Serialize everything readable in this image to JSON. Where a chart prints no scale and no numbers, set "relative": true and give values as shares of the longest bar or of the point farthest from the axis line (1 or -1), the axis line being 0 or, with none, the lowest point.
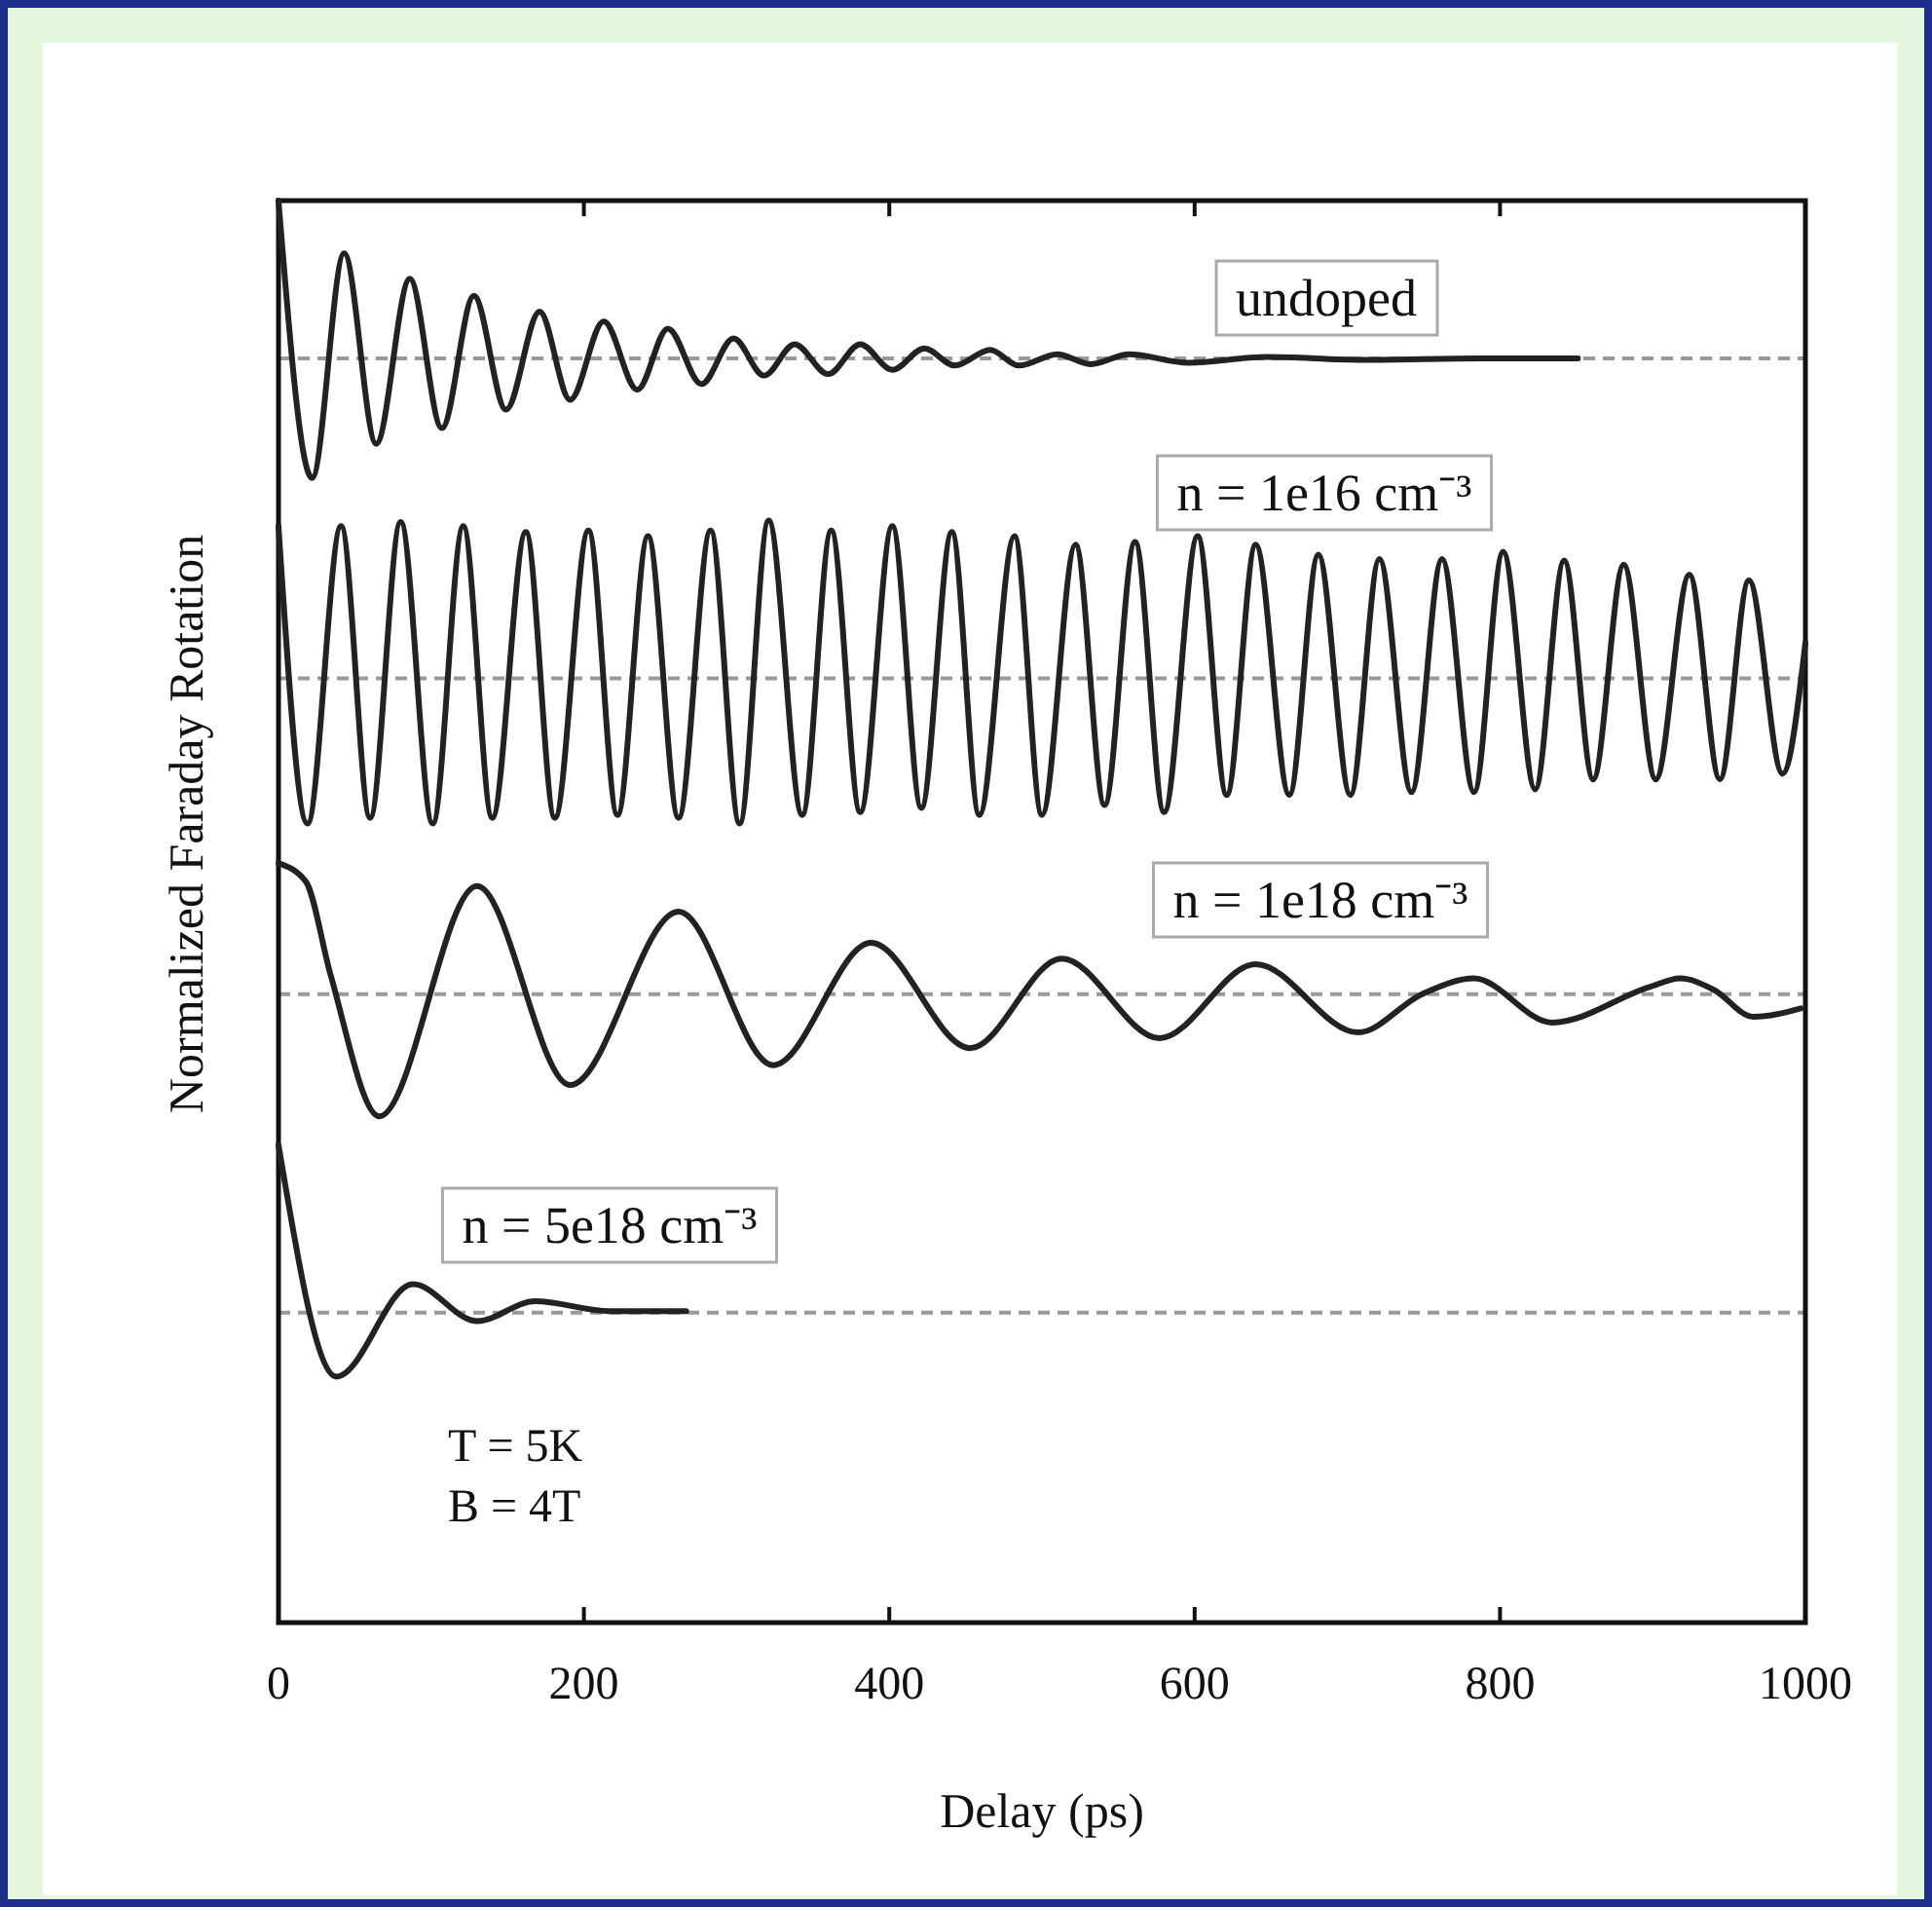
{
  "chart_data": {
    "type": "line",
    "relative": true,
    "xlabel": "Delay (ps)",
    "ylabel": "Normalized Faraday Rotation",
    "xlim": [
      0,
      1000
    ],
    "xticks": [
      0,
      200,
      400,
      600,
      800,
      1000
    ],
    "legend": false,
    "grid": false,
    "marker": "none",
    "line_style": "solid",
    "series": [
      {
        "name": "undoped",
        "color": "#222222",
        "x": [
          0,
          22,
          43,
          64,
          86,
          107,
          128,
          149,
          171,
          191,
          213,
          235,
          255,
          277,
          298,
          318,
          338,
          360,
          381,
          402,
          423,
          443,
          466,
          485,
          510,
          532,
          557,
          596,
          647,
          710,
          787,
          851
        ],
        "values": [
          1.0,
          0.805,
          0.963,
          0.829,
          0.945,
          0.84,
          0.933,
          0.853,
          0.922,
          0.86,
          0.915,
          0.867,
          0.91,
          0.871,
          0.903,
          0.877,
          0.899,
          0.878,
          0.899,
          0.881,
          0.896,
          0.884,
          0.895,
          0.884,
          0.892,
          0.885,
          0.892,
          0.886,
          0.89,
          0.888,
          0.889,
          0.889
        ]
      },
      {
        "name": "n = 1e16 cm⁻³",
        "color": "#222222",
        "x": [
          0,
          19,
          41,
          60,
          80,
          101,
          121,
          140,
          162,
          181,
          203,
          222,
          242,
          262,
          283,
          302,
          321,
          343,
          362,
          381,
          402,
          421,
          441,
          459,
          482,
          500,
          522,
          541,
          561,
          580,
          602,
          621,
          640,
          662,
          681,
          702,
          721,
          742,
          762,
          783,
          802,
          823,
          842,
          861,
          881,
          902,
          924,
          944,
          963,
          985,
          1000
        ],
        "values": [
          0.771,
          0.562,
          0.771,
          0.566,
          0.774,
          0.562,
          0.771,
          0.566,
          0.767,
          0.566,
          0.768,
          0.568,
          0.764,
          0.566,
          0.768,
          0.562,
          0.775,
          0.568,
          0.768,
          0.57,
          0.771,
          0.573,
          0.767,
          0.568,
          0.764,
          0.568,
          0.758,
          0.575,
          0.76,
          0.57,
          0.764,
          0.582,
          0.758,
          0.582,
          0.751,
          0.582,
          0.748,
          0.584,
          0.748,
          0.584,
          0.753,
          0.586,
          0.747,
          0.593,
          0.744,
          0.593,
          0.737,
          0.593,
          0.733,
          0.597,
          0.689
        ]
      },
      {
        "name": "n = 1e18 cm⁻³",
        "color": "#222222",
        "x": [
          0,
          18,
          34,
          66,
          130,
          191,
          262,
          324,
          388,
          453,
          513,
          577,
          640,
          707,
          749,
          783,
          834,
          898,
          918,
          940,
          966,
          997
        ],
        "values": [
          0.534,
          0.521,
          0.456,
          0.356,
          0.518,
          0.378,
          0.5,
          0.392,
          0.478,
          0.404,
          0.467,
          0.411,
          0.463,
          0.415,
          0.442,
          0.453,
          0.422,
          0.447,
          0.453,
          0.445,
          0.426,
          0.432
        ]
      },
      {
        "name": "n = 5e18 cm⁻³",
        "color": "#222222",
        "x": [
          0,
          38,
          88,
          130,
          168,
          217,
          267
        ],
        "values": [
          0.336,
          0.173,
          0.238,
          0.212,
          0.226,
          0.219,
          0.219
        ]
      }
    ],
    "ref_lines": [
      {
        "axis": "y",
        "value": 0.889,
        "color": "#999999",
        "line_style": "dashed"
      },
      {
        "axis": "y",
        "value": 0.664,
        "color": "#999999",
        "line_style": "dashed"
      },
      {
        "axis": "y",
        "value": 0.442,
        "color": "#999999",
        "line_style": "dashed"
      },
      {
        "axis": "y",
        "value": 0.218,
        "color": "#999999",
        "line_style": "dashed"
      }
    ],
    "annotations": [
      "T = 5K",
      "B = 4T"
    ]
  }
}
